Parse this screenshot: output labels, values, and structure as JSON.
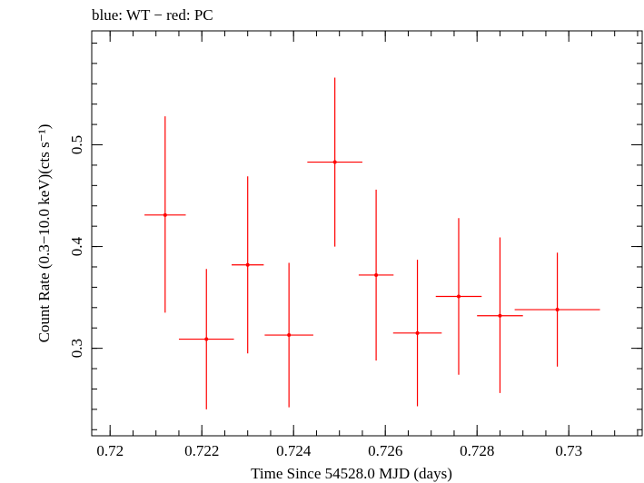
{
  "chart_data": {
    "type": "scatter",
    "title": "blue: WT − red: PC",
    "xlabel": "Time Since 54528.0 MJD (days)",
    "ylabel": "Count Rate (0.3−10.0 keV)(cts s⁻¹)",
    "xlim": [
      0.7196,
      0.7316
    ],
    "ylim": [
      0.214,
      0.612
    ],
    "x_ticks": [
      0.72,
      0.722,
      0.724,
      0.726,
      0.728,
      0.73
    ],
    "x_tick_labels": [
      "0.72",
      "0.722",
      "0.724",
      "0.726",
      "0.728",
      "0.73"
    ],
    "y_ticks": [
      0.3,
      0.4,
      0.5
    ],
    "y_tick_labels": [
      "0.3",
      "0.4",
      "0.5"
    ],
    "x_minor_step": 0.0005,
    "y_minor_step": 0.02,
    "grid": false,
    "series": [
      {
        "name": "PC",
        "color": "#ff0000",
        "points": [
          {
            "x": 0.7212,
            "xerr": 0.00045,
            "y": 0.431,
            "yerr_lo": 0.096,
            "yerr_hi": 0.097
          },
          {
            "x": 0.7221,
            "xerr": 0.0006,
            "y": 0.309,
            "yerr_lo": 0.069,
            "yerr_hi": 0.069
          },
          {
            "x": 0.723,
            "xerr": 0.00035,
            "y": 0.382,
            "yerr_lo": 0.087,
            "yerr_hi": 0.087
          },
          {
            "x": 0.7239,
            "xerr": 0.00053,
            "y": 0.313,
            "yerr_lo": 0.071,
            "yerr_hi": 0.071
          },
          {
            "x": 0.7249,
            "xerr": 0.0006,
            "y": 0.483,
            "yerr_lo": 0.083,
            "yerr_hi": 0.083
          },
          {
            "x": 0.7258,
            "xerr": 0.00038,
            "y": 0.372,
            "yerr_lo": 0.084,
            "yerr_hi": 0.084
          },
          {
            "x": 0.7267,
            "xerr": 0.00053,
            "y": 0.315,
            "yerr_lo": 0.072,
            "yerr_hi": 0.072
          },
          {
            "x": 0.7276,
            "xerr": 0.0005,
            "y": 0.351,
            "yerr_lo": 0.077,
            "yerr_hi": 0.077
          },
          {
            "x": 0.7285,
            "xerr": 0.0005,
            "y": 0.332,
            "yerr_lo": 0.076,
            "yerr_hi": 0.077
          },
          {
            "x": 0.72975,
            "xerr": 0.00093,
            "y": 0.338,
            "yerr_lo": 0.056,
            "yerr_hi": 0.056
          }
        ]
      }
    ]
  }
}
